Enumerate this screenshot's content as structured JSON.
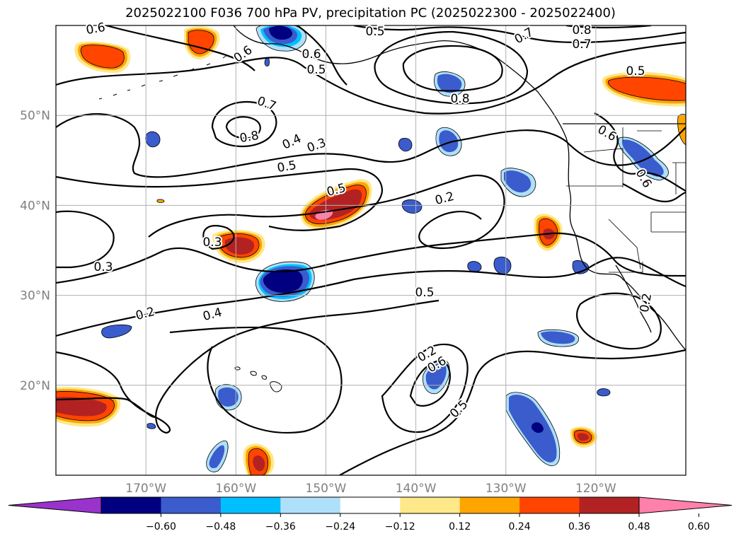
{
  "title": "2025022100 F036 700 hPa PV, precipitation PC (2025022300 - 2025022400)",
  "colors": {
    "grid": "#b0b0b0",
    "contour": "#000000",
    "tick": "#808080"
  },
  "map": {
    "lat_ticks": [
      {
        "label": "50°N",
        "lat": 50
      },
      {
        "label": "40°N",
        "lat": 40
      },
      {
        "label": "30°N",
        "lat": 30
      },
      {
        "label": "20°N",
        "lat": 20
      }
    ],
    "lon_ticks": [
      {
        "label": "170°W",
        "lon": -170
      },
      {
        "label": "160°W",
        "lon": -160
      },
      {
        "label": "150°W",
        "lon": -150
      },
      {
        "label": "140°W",
        "lon": -140
      },
      {
        "label": "130°W",
        "lon": -130
      },
      {
        "label": "120°W",
        "lon": -120
      }
    ],
    "extent": {
      "lon_min": -180,
      "lon_max": -110,
      "lat_min": 10,
      "lat_max": 60
    }
  },
  "colorbar": {
    "ticks": [
      "−0.60",
      "−0.48",
      "−0.36",
      "−0.24",
      "−0.12",
      "0.12",
      "0.24",
      "0.36",
      "0.48",
      "0.60"
    ],
    "colors": [
      "#9933cc",
      "#000080",
      "#3a5ccc",
      "#00bfff",
      "#aee0fa",
      "#ffffff",
      "#ffe88a",
      "#ffa500",
      "#ff4500",
      "#b22222",
      "#ff80aa"
    ]
  },
  "contour_labels": [
    "0.6",
    "0.5",
    "0.7",
    "0.8",
    "0.7",
    "0.6",
    "0.6",
    "0.5",
    "0.7",
    "0.8",
    "0.8",
    "0.6",
    "0.5",
    "0.4",
    "0.3",
    "0.5",
    "0.5",
    "0.3",
    "0.2",
    "0.3",
    "0.2",
    "0.4",
    "0.5",
    "0.2",
    "0.6",
    "0.5",
    "0.6",
    "0.2"
  ],
  "blobs": [
    {
      "name": "alaska-negative",
      "lon": -155,
      "lat": 59,
      "value": -0.6
    },
    {
      "name": "bering-positive",
      "lon": -176,
      "lat": 57,
      "value": 0.36
    },
    {
      "name": "aleutian-positive",
      "lon": -163,
      "lat": 59,
      "value": 0.36
    },
    {
      "name": "gulf-alaska-negative",
      "lon": -133,
      "lat": 54,
      "value": -0.36
    },
    {
      "name": "bc-coast-positive",
      "lon": -113,
      "lat": 54,
      "value": 0.48
    },
    {
      "name": "central-positive",
      "lon": -150,
      "lat": 39.5,
      "value": 0.6
    },
    {
      "name": "west-positive",
      "lon": -160,
      "lat": 35.5,
      "value": 0.48
    },
    {
      "name": "central-negative",
      "lon": -156,
      "lat": 31.5,
      "value": -0.6
    },
    {
      "name": "calif-positive",
      "lon": -125.5,
      "lat": 37,
      "value": 0.48
    },
    {
      "name": "dateline-positive",
      "lon": -178,
      "lat": 18,
      "value": 0.48
    },
    {
      "name": "hawaii-south-positive",
      "lon": -157,
      "lat": 12,
      "value": 0.48
    },
    {
      "name": "se-negative",
      "lon": -126,
      "lat": 16,
      "value": -0.6
    },
    {
      "name": "se-positive",
      "lon": -121.5,
      "lat": 14.5,
      "value": 0.48
    },
    {
      "name": "central-south-negative",
      "lon": -138,
      "lat": 21,
      "value": -0.48
    },
    {
      "name": "east-mid-negative",
      "lon": -128,
      "lat": 42.5,
      "value": -0.48
    },
    {
      "name": "pacific-nw-negative",
      "lon": -116,
      "lat": 44.5,
      "value": -0.36
    }
  ]
}
